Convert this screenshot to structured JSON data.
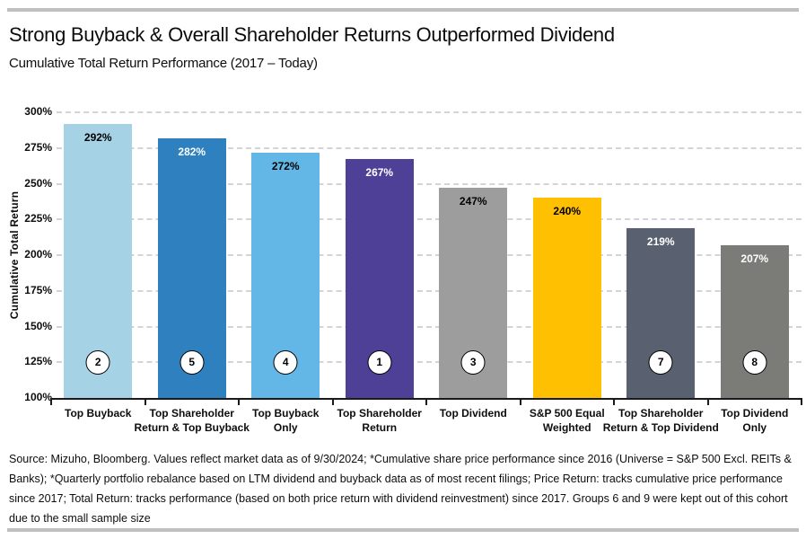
{
  "header": {
    "title": "Strong Buyback & Overall Shareholder Returns Outperformed Dividend",
    "subtitle": "Cumulative Total  Return Performance (2017 – Today)"
  },
  "chart_data": {
    "type": "bar",
    "title": "Strong Buyback & Overall Shareholder Returns Outperformed Dividend",
    "subtitle": "Cumulative Total  Return Performance (2017 – Today)",
    "ylabel": "Cumulative Total Return",
    "xlabel": "",
    "ylim": [
      100,
      300
    ],
    "ytick_step": 25,
    "ytick_labels": [
      "100%",
      "125%",
      "150%",
      "175%",
      "200%",
      "225%",
      "250%",
      "275%",
      "300%"
    ],
    "grid": "horizontal-dashed",
    "legend": "none",
    "categories": [
      "Top Buyback",
      "Top Shareholder Return & Top Buyback",
      "Top Buyback Only",
      "Top Shareholder Return",
      "Top Dividend",
      "S&P 500 Equal Weighted",
      "Top Shareholder Return & Top Dividend",
      "Top Dividend Only"
    ],
    "values": [
      292,
      282,
      272,
      267,
      247,
      240,
      219,
      207
    ],
    "bars": [
      {
        "category": "Top Buyback",
        "label_lines": [
          "Top Buyback"
        ],
        "value": 292,
        "value_label": "292%",
        "color": "#A6D2E6",
        "value_label_color": "#000000",
        "group_badge": "2"
      },
      {
        "category": "Top Shareholder Return & Top Buyback",
        "label_lines": [
          "Top Shareholder",
          "Return & Top Buyback"
        ],
        "value": 282,
        "value_label": "282%",
        "color": "#2E80BE",
        "value_label_color": "#FFFFFF",
        "group_badge": "5"
      },
      {
        "category": "Top Buyback Only",
        "label_lines": [
          "Top Buyback",
          "Only"
        ],
        "value": 272,
        "value_label": "272%",
        "color": "#63B7E6",
        "value_label_color": "#000000",
        "group_badge": "4"
      },
      {
        "category": "Top Shareholder Return",
        "label_lines": [
          "Top Shareholder",
          "Return"
        ],
        "value": 267,
        "value_label": "267%",
        "color": "#4E3F97",
        "value_label_color": "#FFFFFF",
        "group_badge": "1"
      },
      {
        "category": "Top Dividend",
        "label_lines": [
          "Top Dividend"
        ],
        "value": 247,
        "value_label": "247%",
        "color": "#9D9D9D",
        "value_label_color": "#000000",
        "group_badge": "3"
      },
      {
        "category": "S&P 500 Equal Weighted",
        "label_lines": [
          "S&P 500 Equal",
          "Weighted"
        ],
        "value": 240,
        "value_label": "240%",
        "color": "#FEC000",
        "value_label_color": "#000000",
        "group_badge": null
      },
      {
        "category": "Top Shareholder Return & Top Dividend",
        "label_lines": [
          "Top Shareholder",
          "Return & Top Dividend"
        ],
        "value": 219,
        "value_label": "219%",
        "color": "#59606F",
        "value_label_color": "#FFFFFF",
        "group_badge": "7"
      },
      {
        "category": "Top Dividend Only",
        "label_lines": [
          "Top Dividend",
          "Only"
        ],
        "value": 207,
        "value_label": "207%",
        "color": "#7B7B78",
        "value_label_color": "#FFFFFF",
        "group_badge": "8"
      }
    ]
  },
  "footer": {
    "source": "Source: Mizuho, Bloomberg. Values reflect market data as of 9/30/2024; *Cumulative share price performance since 2016 (Universe = S&P 500 Excl. REITs & Banks); *Quarterly portfolio rebalance based on LTM dividend and buyback data as of most recent filings; Price Return: tracks cumulative price performance since 2017; Total Return: tracks performance (based on both price return with dividend reinvestment) since 2017. Groups 6 and 9 were kept out of this cohort due to the small sample size"
  },
  "colors": {
    "divider_rule": "#BFBFBF",
    "axis": "#1A1A1A",
    "gridline": "#D4D4D4",
    "badge_fill": "#FFFFFF",
    "badge_border": "#000000"
  }
}
